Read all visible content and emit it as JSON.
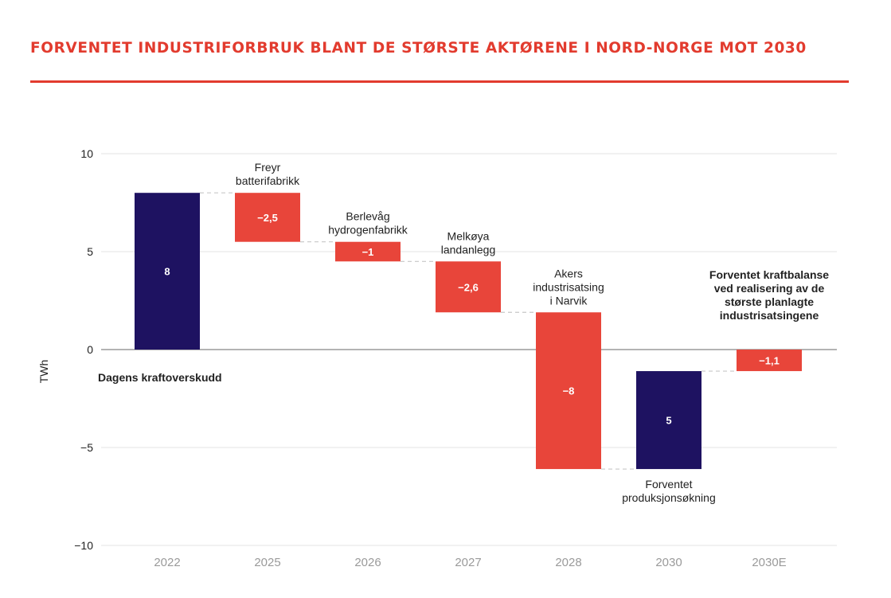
{
  "header": {
    "title": "FORVENTET INDUSTRIFORBRUK BLANT DE STØRSTE AKTØRENE I NORD-NORGE MOT 2030"
  },
  "colors": {
    "accent": "#e23b2e",
    "total_bar": "#1e1261",
    "decrease_bar": "#e8453a",
    "gridline": "#e3e3e3",
    "zero_line": "#9a9a9a",
    "connector": "#c8c8c8",
    "x_tick_text": "#9a9a9a",
    "text": "#222222"
  },
  "chart_data": {
    "type": "bar",
    "subtype": "waterfall",
    "title": "FORVENTET INDUSTRIFORBRUK BLANT DE STØRSTE AKTØRENE I NORD-NORGE MOT 2030",
    "ylabel": "TWh",
    "xlabel": "",
    "ylim": [
      -10,
      10
    ],
    "yticks": [
      10,
      5,
      0,
      -5,
      -10
    ],
    "ytick_labels": [
      "10",
      "5",
      "0",
      "−5",
      "−10"
    ],
    "grid": true,
    "categories": [
      "2022",
      "2025",
      "2026",
      "2027",
      "2028",
      "2030",
      "2030E"
    ],
    "bars": [
      {
        "category": "2022",
        "kind": "total",
        "start": 0,
        "end": 8,
        "label": "8"
      },
      {
        "category": "2025",
        "kind": "decrease",
        "start": 8,
        "end": 5.5,
        "label": "−2,5"
      },
      {
        "category": "2026",
        "kind": "decrease",
        "start": 5.5,
        "end": 4.5,
        "label": "−1"
      },
      {
        "category": "2027",
        "kind": "decrease",
        "start": 4.5,
        "end": 1.9,
        "label": "−2,6"
      },
      {
        "category": "2028",
        "kind": "decrease",
        "start": 1.9,
        "end": -6.1,
        "label": "−8"
      },
      {
        "category": "2030",
        "kind": "total",
        "start": -6.1,
        "end": -1.1,
        "label": "5"
      },
      {
        "category": "2030E",
        "kind": "decrease",
        "start": 0,
        "end": -1.1,
        "label": "−1,1"
      }
    ],
    "annotations": [
      {
        "category": "2022",
        "lines": [
          "Dagens kraftoverskudd"
        ],
        "bold": true,
        "placement": "below-zero"
      },
      {
        "category": "2025",
        "lines": [
          "Freyr",
          "batterifabrikk"
        ],
        "bold": false,
        "placement": "above"
      },
      {
        "category": "2026",
        "lines": [
          "Berlevåg",
          "hydrogenfabrikk"
        ],
        "bold": false,
        "placement": "above"
      },
      {
        "category": "2027",
        "lines": [
          "Melkøya",
          "landanlegg"
        ],
        "bold": false,
        "placement": "above"
      },
      {
        "category": "2028",
        "lines": [
          "Akers",
          "industrisatsing",
          "i Narvik"
        ],
        "bold": false,
        "placement": "above"
      },
      {
        "category": "2030",
        "lines": [
          "Forventet",
          "produksjonsøkning"
        ],
        "bold": false,
        "placement": "below"
      },
      {
        "category": "2030E",
        "lines": [
          "Forventet kraftbalanse",
          "ved realisering av de",
          "største planlagte",
          "industrisatsingene"
        ],
        "bold": true,
        "placement": "above"
      }
    ]
  }
}
